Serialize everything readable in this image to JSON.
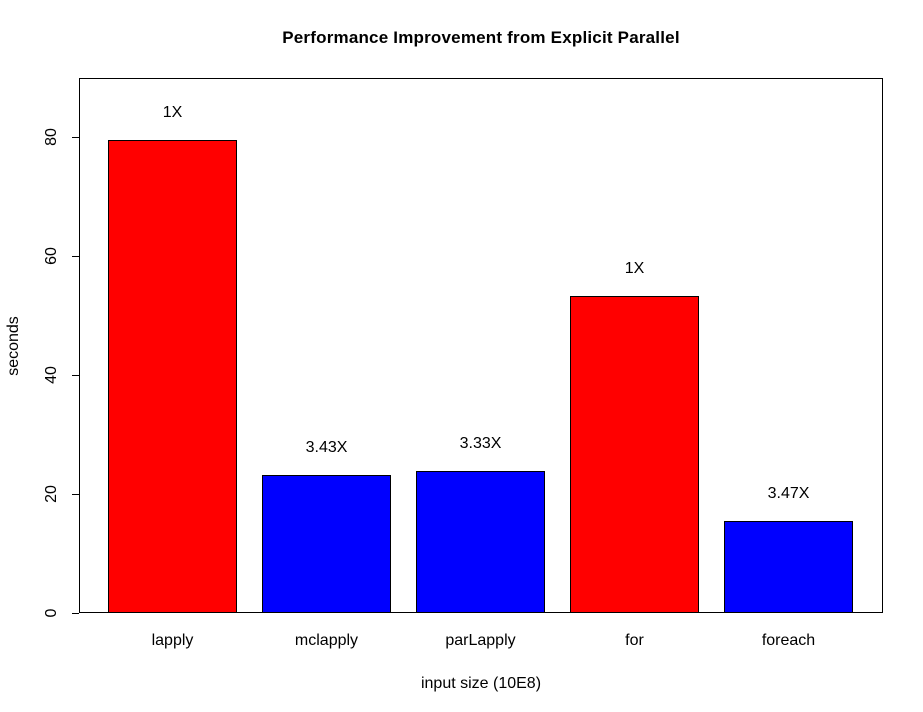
{
  "chart_data": {
    "type": "bar",
    "title": "Performance Improvement from Explicit Parallel",
    "xlabel": "input size (10E8)",
    "ylabel": "seconds",
    "categories": [
      "lapply",
      "mclapply",
      "parLapply",
      "for",
      "foreach"
    ],
    "values": [
      79.5,
      23.2,
      23.9,
      53.3,
      15.4
    ],
    "bar_labels": [
      "1X",
      "3.43X",
      "3.33X",
      "1X",
      "3.47X"
    ],
    "bar_colors": [
      "#FF0000",
      "#0000FF",
      "#0000FF",
      "#FF0000",
      "#0000FF"
    ],
    "yticks": [
      0,
      20,
      40,
      60,
      80
    ],
    "ylim": [
      0,
      90
    ],
    "grid": false,
    "legend": "none"
  },
  "colors": {
    "background": "#FFFFFF",
    "axis": "#000000",
    "text": "#000000",
    "baseline_red": "#FF0000",
    "parallel_blue": "#0000FF"
  }
}
